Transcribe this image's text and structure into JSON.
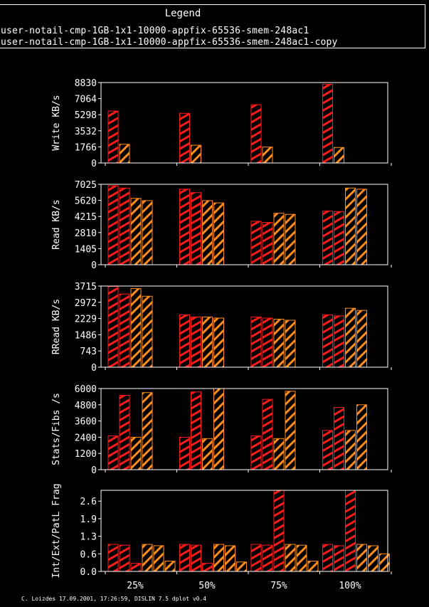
{
  "legend": {
    "title": "Legend",
    "entries": [
      "user-notail-cmp-1GB-1x1-10000-appfix-65536-smem-248ac1",
      "user-notail-cmp-1GB-1x1-10000-appfix-65536-smem-248ac1-copy"
    ]
  },
  "footer": "C. Loizdes 17.09.2001, 17:26:59, DISLIN 7.5 dplot v0.4",
  "colors": {
    "series_a": "#ff1a1a",
    "series_b": "#ff8c1a",
    "axis": "#ffffff",
    "background": "#000000"
  },
  "chart_data": [
    {
      "type": "bar",
      "ylabel": "Write KB/s",
      "categories": [
        "25%",
        "50%",
        "75%",
        "100%"
      ],
      "yticks": [
        "0",
        "1766",
        "3532",
        "5298",
        "7064",
        "8830"
      ],
      "ylim": [
        0,
        8830
      ],
      "show_xticklabels": false,
      "bar_colors": [
        "a",
        "b"
      ],
      "values": [
        [
          5700,
          2050
        ],
        [
          5450,
          1950
        ],
        [
          6400,
          1750
        ],
        [
          8650,
          1700
        ]
      ]
    },
    {
      "type": "bar",
      "ylabel": "Read KB/s",
      "categories": [
        "25%",
        "50%",
        "75%",
        "100%"
      ],
      "yticks": [
        "0",
        "1405",
        "2810",
        "4215",
        "5620",
        "7025"
      ],
      "ylim": [
        0,
        7025
      ],
      "show_xticklabels": false,
      "bar_colors": [
        "a",
        "a",
        "b",
        "b"
      ],
      "values": [
        [
          6900,
          6700,
          5800,
          5600
        ],
        [
          6600,
          6300,
          5600,
          5400
        ],
        [
          3800,
          3700,
          4500,
          4400
        ],
        [
          4700,
          4650,
          6700,
          6600
        ]
      ]
    },
    {
      "type": "bar",
      "ylabel": "RRead KB/s",
      "categories": [
        "25%",
        "50%",
        "75%",
        "100%"
      ],
      "yticks": [
        "0",
        "743",
        "1486",
        "2229",
        "2972",
        "3715"
      ],
      "ylim": [
        0,
        3715
      ],
      "show_xticklabels": false,
      "bar_colors": [
        "a",
        "a",
        "b",
        "b"
      ],
      "values": [
        [
          3700,
          3350,
          3600,
          3250
        ],
        [
          2400,
          2300,
          2300,
          2250
        ],
        [
          2300,
          2250,
          2200,
          2150
        ],
        [
          2400,
          2350,
          2700,
          2600
        ]
      ]
    },
    {
      "type": "bar",
      "ylabel": "Stats/Fibs /s",
      "categories": [
        "25%",
        "50%",
        "75%",
        "100%"
      ],
      "yticks": [
        "0",
        "1200",
        "2400",
        "3600",
        "4800",
        "6000"
      ],
      "ylim": [
        0,
        6000
      ],
      "show_xticklabels": false,
      "bar_colors": [
        "a",
        "a",
        "b",
        "b"
      ],
      "values": [
        [
          2500,
          5500,
          2400,
          5700
        ],
        [
          2400,
          5750,
          2300,
          6000
        ],
        [
          2500,
          5200,
          2300,
          5800
        ],
        [
          2900,
          4600,
          2900,
          4800
        ]
      ]
    },
    {
      "type": "bar",
      "ylabel": "Int/Ext/PatL Frag",
      "categories": [
        "25%",
        "50%",
        "75%",
        "100%"
      ],
      "yticks": [
        "0.0",
        "0.6",
        "1.3",
        "1.9",
        "2.6"
      ],
      "ytick_values": [
        0,
        0.65,
        1.3,
        1.95,
        2.6
      ],
      "ylim": [
        0,
        3.0
      ],
      "show_xticklabels": true,
      "bar_colors": [
        "a",
        "a",
        "a",
        "b",
        "b",
        "b"
      ],
      "values": [
        [
          1.0,
          0.97,
          0.3,
          1.0,
          0.95,
          0.38
        ],
        [
          1.0,
          0.97,
          0.3,
          1.0,
          0.95,
          0.35
        ],
        [
          1.0,
          0.97,
          3.0,
          1.0,
          0.97,
          0.38
        ],
        [
          1.0,
          0.95,
          3.0,
          1.0,
          0.95,
          0.65
        ]
      ]
    }
  ]
}
